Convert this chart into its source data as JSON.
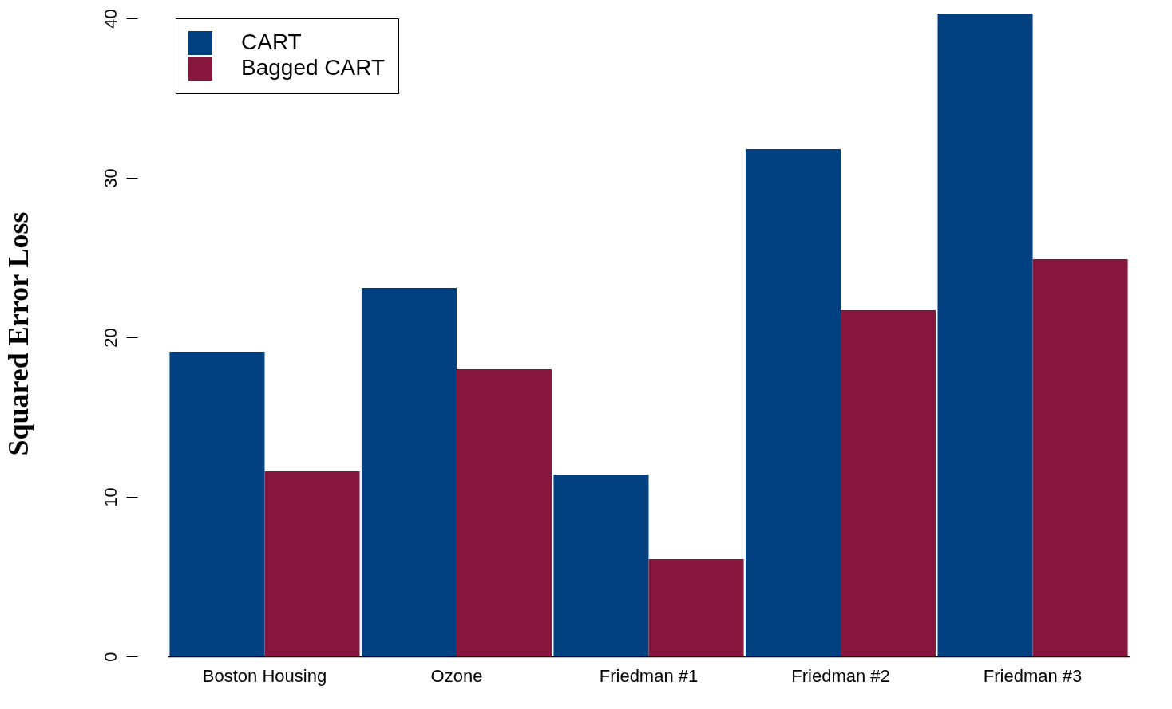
{
  "chart_data": {
    "type": "bar",
    "ylabel": "Squared Error Loss",
    "categories": [
      "Boston Housing",
      "Ozone",
      "Friedman #1",
      "Friedman #2",
      "Friedman #3"
    ],
    "series": [
      {
        "name": "CART",
        "color": "#004080",
        "values": [
          19.1,
          23.1,
          11.4,
          31.8,
          40.3
        ]
      },
      {
        "name": "Bagged CART",
        "color": "#85163e",
        "values": [
          11.6,
          18.0,
          6.1,
          21.7,
          24.9
        ]
      }
    ],
    "ylim": [
      0,
      40.5
    ],
    "yticks": [
      0,
      10,
      20,
      30,
      40
    ],
    "grid": false,
    "legend": "top left"
  }
}
